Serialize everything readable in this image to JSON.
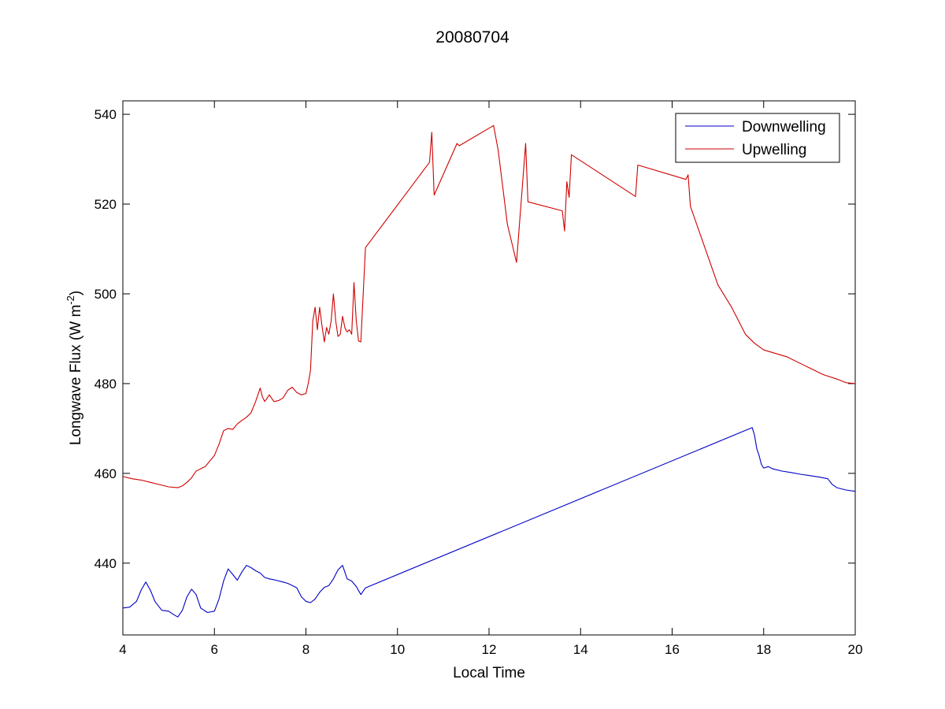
{
  "chart_data": {
    "type": "line",
    "title": "20080704",
    "xlabel": "Local Time",
    "ylabel": {
      "main": "Longwave Flux (W m",
      "superscript": "-2",
      "close": ")"
    },
    "xlim": [
      4,
      20
    ],
    "ylim": [
      424,
      543
    ],
    "xticks": [
      4,
      6,
      8,
      10,
      12,
      14,
      16,
      18,
      20
    ],
    "yticks": [
      440,
      460,
      480,
      500,
      520,
      540
    ],
    "grid": false,
    "legend_position": "top-right",
    "colors": {
      "downwelling": "#0000c8",
      "upwelling": "#d00000"
    },
    "series": [
      {
        "name": "Downwelling",
        "color": "#0000c8",
        "points": [
          [
            4.0,
            430.0
          ],
          [
            4.15,
            430.2
          ],
          [
            4.3,
            431.5
          ],
          [
            4.4,
            434.0
          ],
          [
            4.5,
            435.8
          ],
          [
            4.6,
            434.0
          ],
          [
            4.7,
            431.5
          ],
          [
            4.85,
            429.5
          ],
          [
            5.0,
            429.3
          ],
          [
            5.1,
            428.6
          ],
          [
            5.2,
            428.0
          ],
          [
            5.3,
            429.5
          ],
          [
            5.4,
            432.5
          ],
          [
            5.5,
            434.2
          ],
          [
            5.6,
            433.0
          ],
          [
            5.7,
            430.0
          ],
          [
            5.85,
            429.0
          ],
          [
            6.0,
            429.3
          ],
          [
            6.1,
            432.0
          ],
          [
            6.2,
            436.0
          ],
          [
            6.3,
            438.7
          ],
          [
            6.4,
            437.5
          ],
          [
            6.5,
            436.2
          ],
          [
            6.6,
            438.0
          ],
          [
            6.7,
            439.5
          ],
          [
            6.8,
            439.0
          ],
          [
            6.9,
            438.3
          ],
          [
            7.0,
            437.8
          ],
          [
            7.1,
            436.8
          ],
          [
            7.2,
            436.5
          ],
          [
            7.3,
            436.3
          ],
          [
            7.5,
            435.8
          ],
          [
            7.6,
            435.5
          ],
          [
            7.7,
            435.0
          ],
          [
            7.8,
            434.5
          ],
          [
            7.9,
            432.5
          ],
          [
            8.0,
            431.5
          ],
          [
            8.1,
            431.2
          ],
          [
            8.2,
            432.0
          ],
          [
            8.3,
            433.5
          ],
          [
            8.4,
            434.6
          ],
          [
            8.5,
            435.0
          ],
          [
            8.6,
            436.5
          ],
          [
            8.7,
            438.5
          ],
          [
            8.8,
            439.5
          ],
          [
            8.85,
            438.0
          ],
          [
            8.9,
            436.5
          ],
          [
            9.0,
            436.0
          ],
          [
            9.1,
            434.8
          ],
          [
            9.2,
            433.0
          ],
          [
            9.3,
            434.5
          ],
          [
            17.75,
            470.2
          ],
          [
            17.8,
            468.5
          ],
          [
            17.85,
            465.5
          ],
          [
            17.9,
            464.0
          ],
          [
            17.95,
            462.0
          ],
          [
            18.0,
            461.2
          ],
          [
            18.1,
            461.5
          ],
          [
            18.2,
            461.0
          ],
          [
            18.4,
            460.5
          ],
          [
            18.6,
            460.2
          ],
          [
            18.8,
            459.8
          ],
          [
            19.0,
            459.5
          ],
          [
            19.2,
            459.2
          ],
          [
            19.4,
            458.8
          ],
          [
            19.5,
            457.5
          ],
          [
            19.6,
            456.8
          ],
          [
            19.8,
            456.3
          ],
          [
            20.0,
            456.0
          ]
        ]
      },
      {
        "name": "Upwelling",
        "color": "#d00000",
        "points": [
          [
            4.0,
            459.3
          ],
          [
            4.2,
            458.8
          ],
          [
            4.4,
            458.5
          ],
          [
            4.6,
            458.0
          ],
          [
            4.8,
            457.5
          ],
          [
            5.0,
            457.0
          ],
          [
            5.2,
            456.8
          ],
          [
            5.3,
            457.2
          ],
          [
            5.4,
            458.0
          ],
          [
            5.5,
            459.0
          ],
          [
            5.6,
            460.5
          ],
          [
            5.8,
            461.5
          ],
          [
            6.0,
            464.0
          ],
          [
            6.1,
            466.5
          ],
          [
            6.2,
            469.5
          ],
          [
            6.3,
            470.0
          ],
          [
            6.4,
            469.8
          ],
          [
            6.5,
            471.0
          ],
          [
            6.6,
            471.8
          ],
          [
            6.7,
            472.5
          ],
          [
            6.8,
            473.5
          ],
          [
            6.9,
            476.0
          ],
          [
            7.0,
            479.0
          ],
          [
            7.05,
            477.0
          ],
          [
            7.1,
            476.0
          ],
          [
            7.2,
            477.5
          ],
          [
            7.3,
            476.0
          ],
          [
            7.4,
            476.2
          ],
          [
            7.5,
            476.8
          ],
          [
            7.6,
            478.5
          ],
          [
            7.7,
            479.2
          ],
          [
            7.8,
            478.0
          ],
          [
            7.9,
            477.5
          ],
          [
            8.0,
            477.8
          ],
          [
            8.05,
            480.0
          ],
          [
            8.1,
            483.0
          ],
          [
            8.15,
            494.0
          ],
          [
            8.2,
            497.0
          ],
          [
            8.25,
            492.0
          ],
          [
            8.3,
            497.0
          ],
          [
            8.35,
            493.0
          ],
          [
            8.4,
            489.3
          ],
          [
            8.45,
            492.5
          ],
          [
            8.5,
            491.0
          ],
          [
            8.55,
            494.0
          ],
          [
            8.6,
            500.0
          ],
          [
            8.65,
            494.0
          ],
          [
            8.7,
            490.5
          ],
          [
            8.75,
            491.0
          ],
          [
            8.8,
            495.0
          ],
          [
            8.85,
            492.5
          ],
          [
            8.9,
            491.5
          ],
          [
            8.95,
            492.0
          ],
          [
            9.0,
            491.0
          ],
          [
            9.05,
            502.5
          ],
          [
            9.1,
            494.0
          ],
          [
            9.15,
            489.5
          ],
          [
            9.2,
            489.3
          ],
          [
            9.25,
            500.0
          ],
          [
            9.3,
            510.3
          ],
          [
            10.7,
            529.3
          ],
          [
            10.75,
            536.0
          ],
          [
            10.8,
            522.0
          ],
          [
            11.3,
            533.5
          ],
          [
            11.35,
            533.0
          ],
          [
            12.1,
            537.5
          ],
          [
            12.2,
            532.0
          ],
          [
            12.4,
            515.5
          ],
          [
            12.6,
            507.0
          ],
          [
            12.8,
            533.5
          ],
          [
            12.85,
            520.5
          ],
          [
            13.6,
            518.5
          ],
          [
            13.65,
            514.0
          ],
          [
            13.7,
            525.0
          ],
          [
            13.75,
            521.5
          ],
          [
            13.8,
            531.0
          ],
          [
            15.2,
            521.7
          ],
          [
            15.25,
            528.7
          ],
          [
            16.3,
            525.5
          ],
          [
            16.35,
            526.5
          ],
          [
            16.4,
            519.5
          ],
          [
            17.0,
            502.0
          ],
          [
            17.3,
            497.0
          ],
          [
            17.6,
            491.0
          ],
          [
            17.8,
            489.0
          ],
          [
            18.0,
            487.5
          ],
          [
            18.5,
            486.0
          ],
          [
            19.0,
            483.5
          ],
          [
            19.3,
            482.0
          ],
          [
            19.6,
            481.0
          ],
          [
            19.8,
            480.2
          ],
          [
            20.0,
            480.0
          ]
        ]
      }
    ]
  }
}
